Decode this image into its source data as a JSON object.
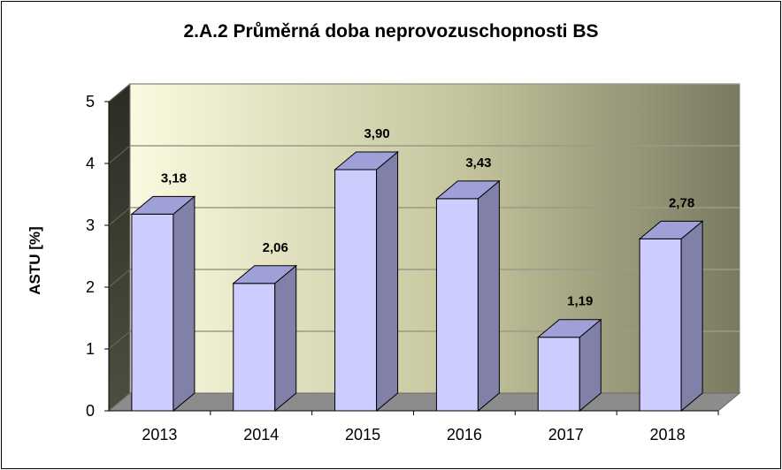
{
  "chart_data": {
    "type": "bar",
    "title": "2.A.2 Průměrná doba neprovozuschopnosti BS",
    "ylabel": "ASTU [%]",
    "xlabel": "",
    "categories": [
      "2013",
      "2014",
      "2015",
      "2016",
      "2017",
      "2018"
    ],
    "values": [
      3.18,
      2.06,
      3.9,
      3.43,
      1.19,
      2.78
    ],
    "data_labels": [
      "3,18",
      "2,06",
      "3,90",
      "3,43",
      "1,19",
      "2,78"
    ],
    "ylim": [
      0,
      5
    ],
    "yticks": [
      "0",
      "1",
      "2",
      "3",
      "4",
      "5"
    ],
    "grid": true,
    "legend": "none",
    "colors": {
      "bar_front": "#ccccff",
      "bar_side": "#8080a8",
      "bar_top": "#a0a0d8",
      "floor": "#8c8c8c",
      "back_wall_left": "#fafae0",
      "back_wall_right": "#7a7a62",
      "side_wall": "#3c3c32"
    }
  }
}
